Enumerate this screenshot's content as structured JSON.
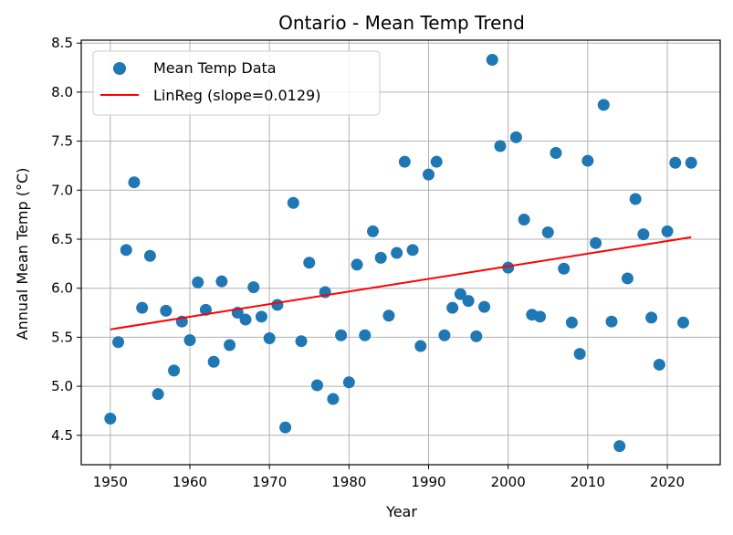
{
  "chart_data": {
    "type": "scatter",
    "title": "Ontario - Mean Temp Trend",
    "xlabel": "Year",
    "ylabel": "Annual Mean Temp (°C)",
    "xlim": [
      1946.35,
      2026.65
    ],
    "ylim": [
      4.2,
      8.53
    ],
    "xticks": [
      1950,
      1960,
      1970,
      1980,
      1990,
      2000,
      2010,
      2020
    ],
    "yticks": [
      4.5,
      5.0,
      5.5,
      6.0,
      6.5,
      7.0,
      7.5,
      8.0,
      8.5
    ],
    "grid": true,
    "legend_position": "top-left",
    "colors": {
      "points": "#1f77b4",
      "line": "#ff0000"
    },
    "series": [
      {
        "name": "Mean Temp Data",
        "kind": "scatter",
        "x": [
          1950,
          1951,
          1952,
          1953,
          1954,
          1955,
          1956,
          1957,
          1958,
          1959,
          1960,
          1961,
          1962,
          1963,
          1964,
          1965,
          1966,
          1967,
          1968,
          1969,
          1970,
          1971,
          1972,
          1973,
          1974,
          1975,
          1976,
          1977,
          1978,
          1979,
          1980,
          1981,
          1982,
          1983,
          1984,
          1985,
          1986,
          1987,
          1988,
          1989,
          1990,
          1991,
          1992,
          1993,
          1994,
          1995,
          1996,
          1997,
          1998,
          1999,
          2000,
          2001,
          2002,
          2003,
          2004,
          2005,
          2006,
          2007,
          2008,
          2009,
          2010,
          2011,
          2012,
          2013,
          2014,
          2015,
          2016,
          2017,
          2018,
          2019,
          2020,
          2021,
          2022,
          2023
        ],
        "y": [
          4.67,
          5.45,
          6.39,
          7.08,
          5.8,
          6.33,
          4.92,
          5.77,
          5.16,
          5.66,
          5.47,
          6.06,
          5.78,
          5.25,
          6.07,
          5.42,
          5.75,
          5.68,
          6.01,
          5.71,
          5.49,
          5.83,
          4.58,
          6.87,
          5.46,
          6.26,
          5.01,
          5.96,
          4.87,
          5.52,
          5.04,
          6.24,
          5.52,
          6.58,
          6.31,
          5.72,
          6.36,
          7.29,
          6.39,
          5.41,
          7.16,
          7.29,
          5.52,
          5.8,
          5.94,
          5.87,
          5.51,
          5.81,
          8.33,
          7.45,
          6.21,
          7.54,
          6.7,
          5.73,
          5.71,
          6.57,
          7.38,
          6.2,
          5.65,
          5.33,
          7.3,
          6.46,
          7.87,
          5.66,
          4.39,
          6.1,
          6.91,
          6.55,
          5.7,
          5.22,
          6.58,
          7.28,
          5.65,
          7.28
        ]
      },
      {
        "name": "LinReg (slope=0.0129)",
        "kind": "line",
        "x": [
          1950,
          2023
        ],
        "y": [
          5.58,
          6.52
        ]
      }
    ]
  }
}
